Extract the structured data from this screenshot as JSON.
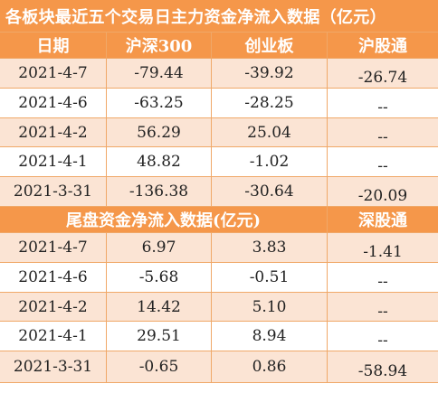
{
  "title": "各板块最近五个交易日主力资金净流入数据（亿元）",
  "headers": [
    "日期",
    "沪深300",
    "创业板",
    "沪股通"
  ],
  "rows1": [
    [
      "2021-4-7",
      "-79.44",
      "-39.92",
      "-26.74"
    ],
    [
      "2021-4-6",
      "-63.25",
      "-28.25",
      "--"
    ],
    [
      "2021-4-2",
      "56.29",
      "25.04",
      "--"
    ],
    [
      "2021-4-1",
      "48.82",
      "-1.02",
      "--"
    ],
    [
      "2021-3-31",
      "-136.38",
      "-30.64",
      "-20.09"
    ]
  ],
  "section2": {
    "title": "尾盘资金净流入数据(亿元)",
    "col": "深股通"
  },
  "rows2": [
    [
      "2021-4-7",
      "6.97",
      "3.83",
      "-1.41"
    ],
    [
      "2021-4-6",
      "-5.68",
      "-0.51",
      "--"
    ],
    [
      "2021-4-2",
      "14.42",
      "5.10",
      "--"
    ],
    [
      "2021-4-1",
      "29.51",
      "8.94",
      "--"
    ],
    [
      "2021-3-31",
      "-0.65",
      "0.86",
      "-58.94"
    ]
  ],
  "colors": {
    "header_bg": "#f5974a",
    "stripe_bg": "#fbe4d4",
    "border": "#f0a868"
  }
}
